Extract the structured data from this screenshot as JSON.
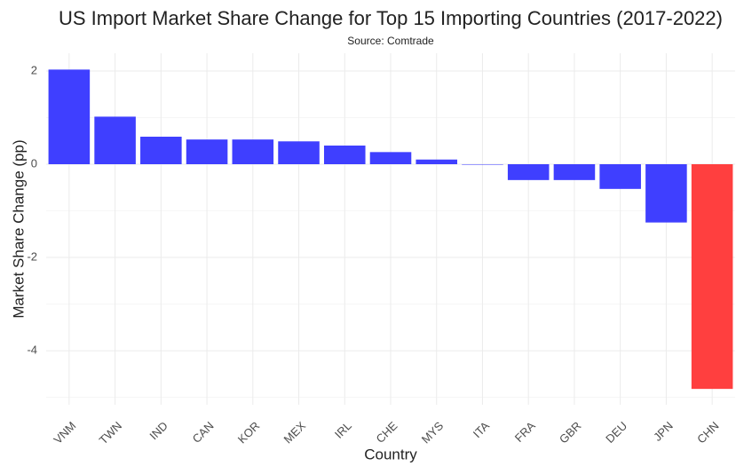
{
  "chart_data": {
    "type": "bar",
    "title": "US Import Market Share Change for Top 15 Importing Countries (2017-2022)",
    "subtitle": "Source: Comtrade",
    "x_label": "Country",
    "y_label": "Market Share Change (pp)",
    "categories": [
      "VNM",
      "TWN",
      "IND",
      "CAN",
      "KOR",
      "MEX",
      "IRL",
      "CHE",
      "MYS",
      "ITA",
      "FRA",
      "GBR",
      "DEU",
      "JPN",
      "CHN"
    ],
    "values": [
      2.03,
      1.02,
      0.59,
      0.53,
      0.53,
      0.49,
      0.4,
      0.26,
      0.1,
      -0.01,
      -0.34,
      -0.34,
      -0.53,
      -1.25,
      -4.82
    ],
    "colors": [
      "#3f3fff",
      "#3f3fff",
      "#3f3fff",
      "#3f3fff",
      "#3f3fff",
      "#3f3fff",
      "#3f3fff",
      "#3f3fff",
      "#3f3fff",
      "#3f3fff",
      "#3f3fff",
      "#3f3fff",
      "#3f3fff",
      "#3f3fff",
      "#ff3f3f"
    ],
    "ylim": [
      -5.16,
      2.38
    ],
    "yticks": [
      -4,
      -2,
      0,
      2
    ],
    "minor_yticks": [
      -5,
      -3,
      -1,
      1
    ],
    "grid": true
  }
}
